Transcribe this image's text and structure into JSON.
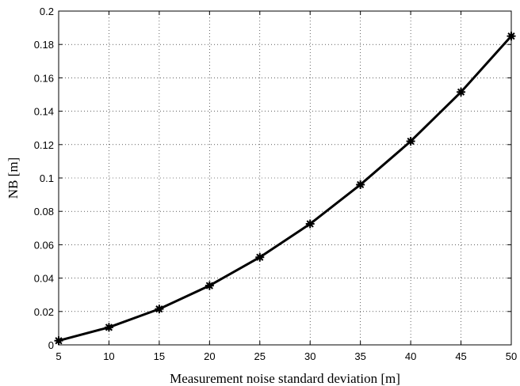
{
  "chart_data": {
    "type": "line",
    "title": "",
    "xlabel": "Measurement noise standard deviation [m]",
    "ylabel": "NB [m]",
    "xlim": [
      5,
      50
    ],
    "ylim": [
      0,
      0.2
    ],
    "grid": true,
    "x_ticks": [
      "5",
      "10",
      "15",
      "20",
      "25",
      "30",
      "35",
      "40",
      "45",
      "50"
    ],
    "y_ticks": [
      "0",
      "0.02",
      "0.04",
      "0.06",
      "0.08",
      "0.1",
      "0.12",
      "0.14",
      "0.16",
      "0.18",
      "0.2"
    ],
    "series": [
      {
        "x": [
          5,
          10,
          15,
          20,
          25,
          30,
          35,
          40,
          45,
          50
        ],
        "values": [
          0.0025,
          0.0105,
          0.0215,
          0.0355,
          0.0525,
          0.0725,
          0.096,
          0.122,
          0.1515,
          0.185
        ],
        "color": "#000000",
        "marker": "star"
      }
    ]
  }
}
